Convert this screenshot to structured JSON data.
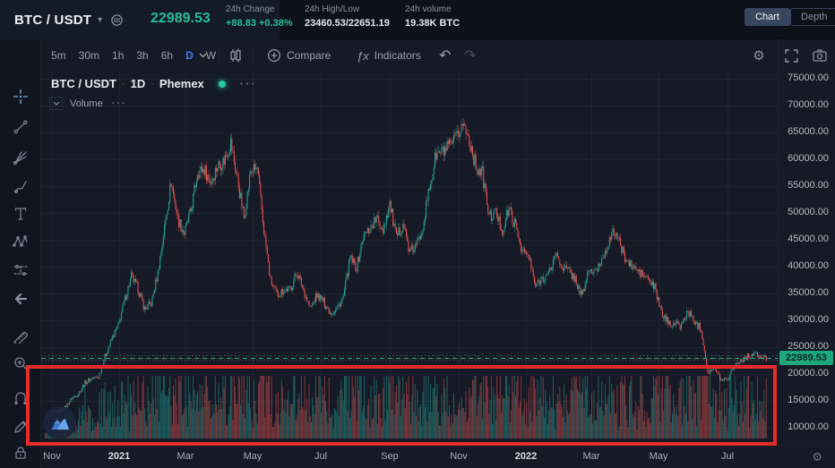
{
  "header": {
    "symbol": "BTC / USDT",
    "last_price": "22989.53",
    "stats": [
      {
        "label": "24h Change",
        "value": "+88.83 +0.38%"
      },
      {
        "label": "24h High/Low",
        "value": "23460.53/22651.19"
      },
      {
        "label": "24h volume",
        "value": "19.38K BTC"
      }
    ],
    "view_tabs": [
      {
        "label": "Chart",
        "active": true
      },
      {
        "label": "Depth",
        "active": false
      }
    ]
  },
  "toolbar": {
    "timeframes": [
      "5m",
      "30m",
      "1h",
      "3h",
      "6h",
      "D",
      "W"
    ],
    "active_timeframe": "D",
    "compare_label": "Compare",
    "indicators_label": "Indicators",
    "indicators_fx": "ƒx",
    "undo_glyph": "↶",
    "redo_glyph": "↷",
    "gear_glyph": "⚙"
  },
  "legend": {
    "symbol": "BTC / USDT",
    "separator": "·",
    "interval": "1D",
    "exchange": "Phemex",
    "more": "···",
    "indicator": {
      "name": "Volume",
      "more": "···"
    }
  },
  "sidebar_tools": [
    "crosshair",
    "trend-line",
    "gann-fan",
    "brush",
    "text",
    "xabcd-pattern",
    "forecast",
    "arrow-left",
    "ruler",
    "zoom-in",
    "magnet",
    "draw-mode",
    "lock",
    "hide"
  ],
  "price_axis": {
    "labels": [
      "75000.00",
      "70000.00",
      "65000.00",
      "60000.00",
      "55000.00",
      "50000.00",
      "45000.00",
      "40000.00",
      "35000.00",
      "30000.00",
      "25000.00",
      "20000.00",
      "15000.00",
      "10000.00"
    ],
    "current_price_label": "22989.53"
  },
  "time_axis": {
    "labels": [
      "Nov",
      "2021",
      "Mar",
      "May",
      "Jul",
      "Sep",
      "Nov",
      "2022",
      "Mar",
      "May",
      "Jul"
    ]
  },
  "misc": {
    "scroll_left_glyph": "‹",
    "logo": "phemex-mountain-logo"
  },
  "annotation": {
    "shape": "rectangle",
    "color": "#e62b2b",
    "purpose": "red highlight box drawn around the volume pane"
  },
  "colors": {
    "up": "#26a69a",
    "down": "#ef5350",
    "vol_up": "rgba(38,166,154,0.5)",
    "vol_down": "rgba(239,83,80,0.5)",
    "grid": "rgba(190,200,225,0.055)",
    "accent_blue": "#3e7ef7",
    "price_line": "#21b87e",
    "label_bg": "#1ca87c"
  },
  "chart_data": {
    "type": "candlestick",
    "symbol": "BTC/USDT",
    "interval": "1D",
    "exchange": "Phemex",
    "title": "BTC / USDT · 1D · Phemex",
    "x_range": [
      "Oct 2020",
      "Aug 2022"
    ],
    "y_axis": {
      "min": 10000,
      "max": 75000,
      "tick_step": 5000,
      "grid": true
    },
    "current_price": 22989.53,
    "day_high": 23460.53,
    "day_low": 22651.19,
    "volume_pane": true,
    "weekly_close_anchors": [
      11500,
      12900,
      13050,
      13800,
      15500,
      16300,
      18400,
      19200,
      19400,
      23200,
      26500,
      29000,
      33900,
      38200,
      35800,
      32100,
      33100,
      38900,
      47200,
      55900,
      48900,
      46200,
      50400,
      57800,
      58100,
      55800,
      58900,
      59800,
      63200,
      56200,
      49100,
      57800,
      58200,
      46700,
      37300,
      34700,
      35700,
      35800,
      39000,
      35600,
      32200,
      34700,
      33500,
      31500,
      32100,
      34300,
      41500,
      39900,
      45600,
      47100,
      48900,
      47000,
      51800,
      45200,
      48300,
      42700,
      43800,
      47700,
      54700,
      60900,
      61300,
      62300,
      63500,
      66800,
      63600,
      58700,
      57300,
      49200,
      50100,
      46700,
      50800,
      47300,
      43100,
      41700,
      36200,
      37900,
      38500,
      42400,
      40100,
      39200,
      37700,
      34300,
      39400,
      38800,
      41300,
      44500,
      46800,
      43200,
      40600,
      39700,
      38600,
      37700,
      36000,
      31300,
      29700,
      29400,
      29000,
      31700,
      29800,
      28400,
      20500,
      21000,
      19000,
      19200,
      21600,
      22500,
      23300,
      23800,
      23000,
      22989
    ]
  }
}
